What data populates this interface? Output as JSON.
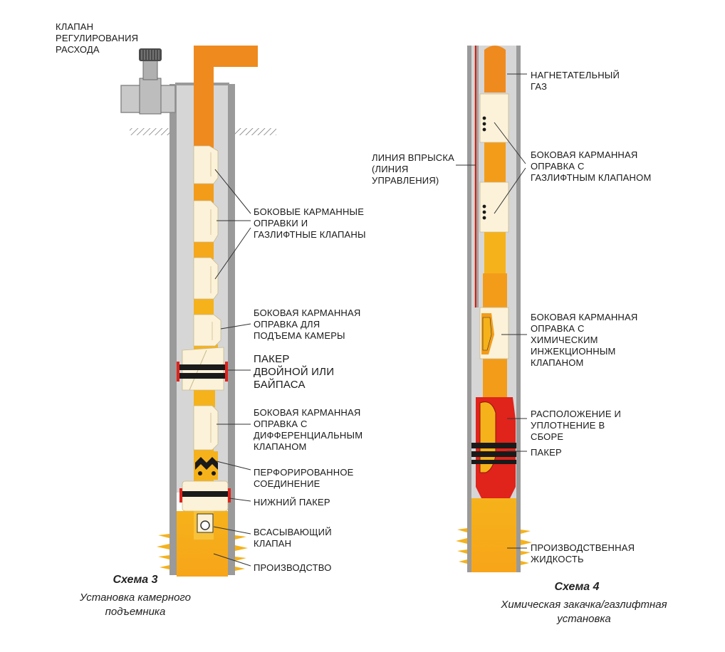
{
  "scheme3": {
    "title": "Схема 3",
    "subtitle": "Установка камерного\nподъемника",
    "labels": {
      "flow_valve": "КЛАПАН\nРЕГУЛИРОВАНИЯ\nРАСХОДА",
      "side_pockets": "БОКОВЫЕ КАРМАННЫЕ\nОПРАВКИ И\nГАЗЛИФТНЫЕ КЛАПАНЫ",
      "chamber_mandrel": "БОКОВАЯ КАРМАННАЯ\nОПРАВКА ДЛЯ\nПОДЪЕМА КАМЕРЫ",
      "packer": "ПАКЕР\nДВОЙНОЙ ИЛИ\nБАЙПАСА",
      "diff_mandrel": "БОКОВАЯ КАРМАННАЯ\nОПРАВКА С\nДИФФЕРЕНЦИАЛЬНЫМ\nКЛАПАНОМ",
      "perforated": "ПЕРФОРИРОВАННОЕ\nСОЕДИНЕНИЕ",
      "lower_packer": "НИЖНИЙ ПАКЕР",
      "suction_valve": "ВСАСЫВАЮЩИЙ\nКЛАПАН",
      "production": "ПРОИЗВОДСТВО"
    }
  },
  "scheme4": {
    "title": "Схема 4",
    "subtitle": "Химическая закачка/газлифтная\nустановка",
    "labels": {
      "injection_gas": "НАГНЕТАТЕЛЬНЫЙ\nГАЗ",
      "injection_line": "ЛИНИЯ ВПРЫСКА\n(ЛИНИЯ\nУПРАВЛЕНИЯ)",
      "gaslift_mandrel": "БОКОВАЯ КАРМАННАЯ\nОПРАВКА С\nГАЗЛИФТНЫМ КЛАПАНОМ",
      "chem_mandrel": "БОКОВАЯ КАРМАННАЯ\nОПРАВКА С\nХИМИЧЕСКИМ\nИНЖЕКЦИОННЫМ\nКЛАПАНОМ",
      "seal_assembly": "РАСПОЛОЖЕНИЕ И\nУПЛОТНЕНИЕ В\nСБОРЕ",
      "packer": "ПАКЕР",
      "production_fluid": "ПРОИЗВОДСТВЕННАЯ\nЖИДКОСТЬ"
    }
  },
  "colors": {
    "tubing_orange": "#ef8a1e",
    "tubing_yellow": "#f6b21a",
    "mandrel_cream": "#fbf2d9",
    "casing_gray": "#cfcfcf",
    "casing_dark": "#8a8a8a",
    "packer_red": "#e0231b",
    "packer_black": "#1a1a1a"
  }
}
